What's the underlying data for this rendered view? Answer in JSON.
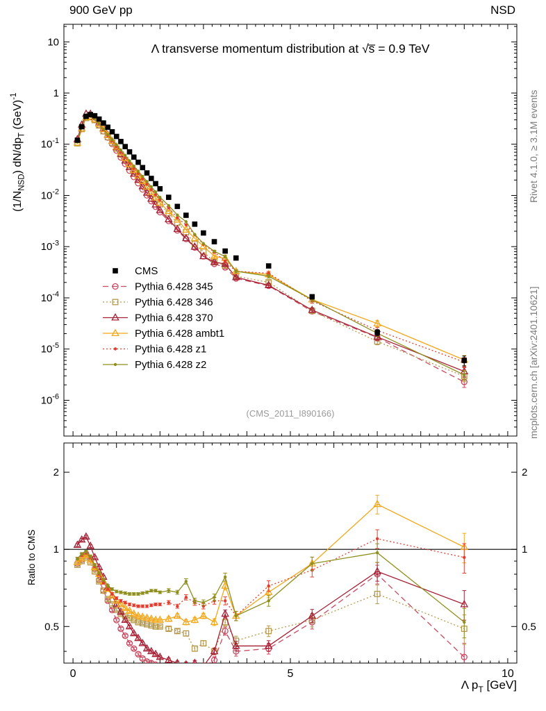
{
  "header": {
    "left": "900 GeV pp",
    "right": "NSD"
  },
  "side_notes": {
    "top_right": "Rivet 4.1.0, ≥ 3.1M events",
    "bottom_right": "mcplots.cern.ch [arXiv:2401.10621]"
  },
  "chart_data": {
    "type": "line",
    "title": "Λ transverse momentum distribution at √s̅ = 0.9 TeV",
    "watermark": "(CMS_2011_I890166)",
    "xlabel": "Λ p_{T} [GeV]",
    "xlim": [
      -0.21,
      10.21
    ],
    "xticks": [
      0,
      5,
      10
    ],
    "panels": [
      {
        "id": "main",
        "ylabel": "(1/N_{NSD}) dN/dp_{T} (GeV)^{-1}",
        "yscale": "log",
        "ylim": [
          2e-07,
          22
        ],
        "ytick_vals": [
          10,
          1,
          0.1,
          0.01,
          0.001,
          0.0001,
          1e-05,
          1e-06
        ],
        "ytick_labels": [
          "10",
          "1",
          "10^{-1}",
          "10^{-2}",
          "10^{-3}",
          "10^{-4}",
          "10^{-5}",
          "10^{-6}"
        ]
      },
      {
        "id": "ratio",
        "ylabel": "Ratio to CMS",
        "yscale": "log",
        "ylim": [
          0.36,
          2.6
        ],
        "ytick_vals": [
          0.5,
          1,
          2
        ],
        "ytick_labels": [
          "0.5",
          "1",
          "2"
        ],
        "ytick_minor": [
          0.4,
          0.6,
          0.7,
          0.8,
          0.9
        ],
        "ref_line": 1
      }
    ],
    "x": [
      0.1,
      0.2,
      0.3,
      0.4,
      0.5,
      0.6,
      0.7,
      0.8,
      0.9,
      1.0,
      1.1,
      1.2,
      1.3,
      1.4,
      1.5,
      1.6,
      1.7,
      1.8,
      1.9,
      2.0,
      2.2,
      2.4,
      2.6,
      2.8,
      3.0,
      3.25,
      3.5,
      3.75,
      4.5,
      5.5,
      7.0,
      9.0
    ],
    "yerr_frac": [
      0.02,
      0.02,
      0.02,
      0.02,
      0.02,
      0.02,
      0.02,
      0.02,
      0.02,
      0.02,
      0.02,
      0.02,
      0.02,
      0.02,
      0.02,
      0.02,
      0.02,
      0.02,
      0.02,
      0.02,
      0.03,
      0.03,
      0.04,
      0.04,
      0.04,
      0.05,
      0.06,
      0.07,
      0.08,
      0.1,
      0.14,
      0.22
    ],
    "series": [
      {
        "name": "CMS",
        "color": "#000000",
        "marker": "sq-fill",
        "line": "none",
        "values": [
          0.12,
          0.22,
          0.35,
          0.38,
          0.36,
          0.31,
          0.26,
          0.215,
          0.175,
          0.142,
          0.113,
          0.09,
          0.071,
          0.056,
          0.0445,
          0.035,
          0.0275,
          0.0215,
          0.017,
          0.0135,
          0.0092,
          0.0061,
          0.0041,
          0.00275,
          0.00185,
          0.00125,
          0.00082,
          0.0006,
          0.00042,
          0.000105,
          2.1e-05,
          6e-06
        ]
      },
      {
        "name": "Pythia 6.428 345",
        "color": "#c9485f",
        "marker": "circle-open",
        "line": "dashed",
        "ratio_to_cms": [
          0.88,
          0.91,
          0.96,
          0.92,
          0.84,
          0.76,
          0.69,
          0.63,
          0.58,
          0.53,
          0.49,
          0.46,
          0.43,
          0.41,
          0.39,
          0.375,
          0.365,
          0.36,
          0.355,
          0.35,
          0.345,
          0.34,
          0.345,
          0.35,
          0.35,
          0.37,
          0.48,
          0.4,
          0.41,
          0.52,
          0.8,
          0.38
        ]
      },
      {
        "name": "Pythia 6.428 346",
        "color": "#b5984a",
        "marker": "sq-open",
        "line": "dotted",
        "ratio_to_cms": [
          0.87,
          0.9,
          0.93,
          0.89,
          0.82,
          0.75,
          0.69,
          0.64,
          0.61,
          0.58,
          0.56,
          0.55,
          0.54,
          0.53,
          0.52,
          0.515,
          0.51,
          0.505,
          0.5,
          0.5,
          0.49,
          0.48,
          0.47,
          0.41,
          0.43,
          0.4,
          0.52,
          0.44,
          0.48,
          0.53,
          0.67,
          0.49
        ]
      },
      {
        "name": "Pythia 6.428 370",
        "color": "#a62035",
        "marker": "tri-open",
        "line": "solid",
        "ratio_to_cms": [
          1.04,
          1.09,
          1.12,
          1.03,
          0.93,
          0.85,
          0.78,
          0.71,
          0.66,
          0.61,
          0.57,
          0.53,
          0.5,
          0.47,
          0.45,
          0.43,
          0.41,
          0.4,
          0.39,
          0.38,
          0.37,
          0.36,
          0.355,
          0.36,
          0.35,
          0.4,
          0.56,
          0.42,
          0.42,
          0.55,
          0.82,
          0.61
        ]
      },
      {
        "name": "Pythia 6.428 ambt1",
        "color": "#f3a71b",
        "marker": "tri-open",
        "line": "solid",
        "ratio_to_cms": [
          0.89,
          0.92,
          0.95,
          0.91,
          0.85,
          0.8,
          0.75,
          0.7,
          0.66,
          0.63,
          0.61,
          0.59,
          0.575,
          0.56,
          0.55,
          0.545,
          0.54,
          0.535,
          0.53,
          0.53,
          0.535,
          0.55,
          0.52,
          0.53,
          0.55,
          0.52,
          0.72,
          0.55,
          0.68,
          0.88,
          1.5,
          1.02
        ]
      },
      {
        "name": "Pythia 6.428 z1",
        "color": "#e23d2e",
        "marker": "dot",
        "line": "dotted",
        "ratio_to_cms": [
          0.92,
          0.95,
          0.97,
          0.93,
          0.86,
          0.8,
          0.74,
          0.7,
          0.67,
          0.645,
          0.63,
          0.62,
          0.61,
          0.605,
          0.6,
          0.6,
          0.6,
          0.605,
          0.61,
          0.61,
          0.62,
          0.6,
          0.65,
          0.62,
          0.6,
          0.63,
          0.63,
          0.55,
          0.72,
          0.83,
          1.1,
          0.93
        ]
      },
      {
        "name": "Pythia 6.428 z2",
        "color": "#8f8f1f",
        "marker": "dot",
        "line": "solid",
        "ratio_to_cms": [
          0.92,
          0.96,
          0.98,
          0.94,
          0.87,
          0.81,
          0.76,
          0.72,
          0.7,
          0.685,
          0.68,
          0.675,
          0.67,
          0.67,
          0.67,
          0.675,
          0.68,
          0.69,
          0.69,
          0.68,
          0.69,
          0.68,
          0.75,
          0.63,
          0.62,
          0.65,
          0.78,
          0.55,
          0.63,
          0.88,
          0.97,
          0.52
        ]
      }
    ],
    "legend_position": "middle-left"
  }
}
